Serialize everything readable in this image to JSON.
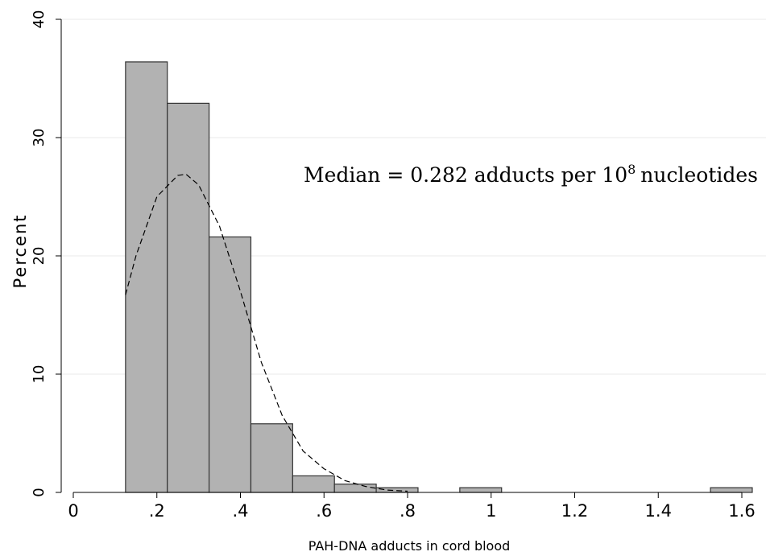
{
  "chart_data": {
    "type": "histogram",
    "bins": [
      0.125,
      0.225,
      0.325,
      0.425,
      0.525,
      0.625,
      0.725,
      0.825,
      0.925,
      1.025,
      1.125,
      1.225,
      1.325,
      1.425,
      1.525,
      1.625
    ],
    "values": [
      36.4,
      32.9,
      21.6,
      5.8,
      1.4,
      0.7,
      0.4,
      0,
      0.4,
      0,
      0,
      0,
      0,
      0,
      0.4
    ],
    "color": "#b2b2b2",
    "density": {
      "x": [
        0.125,
        0.15,
        0.2,
        0.25,
        0.27,
        0.3,
        0.35,
        0.4,
        0.45,
        0.5,
        0.55,
        0.6,
        0.65,
        0.7,
        0.75,
        0.8
      ],
      "values": [
        16.7,
        20,
        25,
        26.8,
        26.9,
        26,
        22.5,
        17,
        11,
        6.5,
        3.5,
        2,
        1,
        0.5,
        0.2,
        0.1
      ]
    },
    "xlabel": "PAH-DNA adducts in cord blood",
    "ylabel": "Percent",
    "annotation": {
      "text": "Median = 0.282 adducts per 10",
      "superscript": "8",
      "suffix": "nucleotides"
    },
    "xlim": [
      0,
      1.6
    ],
    "ylim": [
      0,
      40
    ],
    "xticks": [
      0,
      {
        "value": 0.2,
        "label": ".2"
      },
      {
        "value": 0.4,
        "label": ".4"
      },
      {
        "value": 0.6,
        "label": ".6"
      },
      {
        "value": 0.8,
        "label": ".8"
      },
      1,
      1.2,
      1.4,
      1.6
    ],
    "yticks": [
      0,
      10,
      20,
      30,
      40
    ],
    "grid": true
  }
}
